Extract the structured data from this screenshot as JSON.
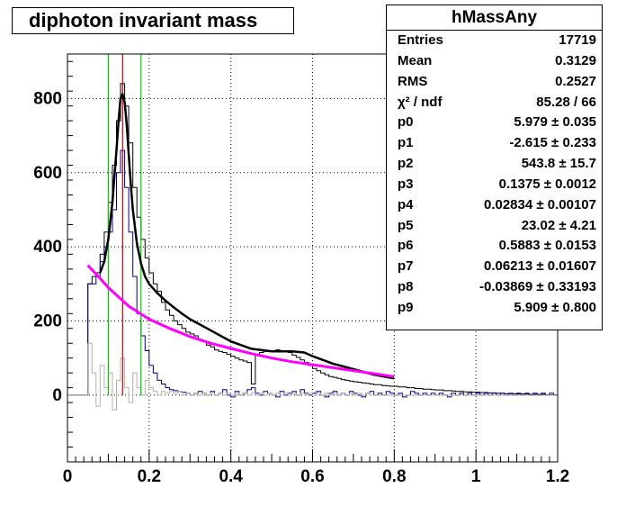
{
  "title": "diphoton invariant mass",
  "stats": {
    "name": "hMassAny",
    "rows": [
      {
        "label": "Entries",
        "value": "17719"
      },
      {
        "label": "Mean",
        "value": "0.3129"
      },
      {
        "label": "RMS",
        "value": "0.2527"
      },
      {
        "label": "χ² / ndf",
        "value": "85.28 / 66"
      },
      {
        "label": "p0",
        "value": "5.979 ± 0.035"
      },
      {
        "label": "p1",
        "value": "-2.615 ± 0.233"
      },
      {
        "label": "p2",
        "value": "543.8 ± 15.7"
      },
      {
        "label": "p3",
        "value": "0.1375 ± 0.0012"
      },
      {
        "label": "p4",
        "value": "0.02834 ± 0.00107"
      },
      {
        "label": "p5",
        "value": "23.02 ± 4.21"
      },
      {
        "label": "p6",
        "value": "0.5883 ± 0.0153"
      },
      {
        "label": "p7",
        "value": "0.06213 ± 0.01607"
      },
      {
        "label": "p8",
        "value": "-0.03869 ± 0.33193"
      },
      {
        "label": "p9",
        "value": "5.909 ± 0.800"
      }
    ]
  },
  "chart_data": {
    "type": "line",
    "xlim": [
      0,
      1.2
    ],
    "ylim": [
      -180,
      920
    ],
    "xticks": [
      "0",
      "0.2",
      "0.4",
      "0.6",
      "0.8",
      "1",
      "1.2"
    ],
    "xtick_values": [
      0,
      0.2,
      0.4,
      0.6,
      0.8,
      1.0,
      1.2
    ],
    "yticks": [
      "0",
      "200",
      "400",
      "600",
      "800"
    ],
    "ytick_values": [
      0,
      200,
      400,
      600,
      800
    ],
    "grid": true,
    "bin_width": 0.005,
    "series": [
      {
        "role": "histogram",
        "color": "#000000",
        "x_start": 0.0,
        "values": [
          0,
          0,
          0,
          0,
          0,
          0,
          0,
          0,
          0,
          0,
          300,
          300,
          320,
          320,
          330,
          330,
          380,
          380,
          440,
          440,
          520,
          520,
          620,
          620,
          740,
          740,
          840,
          840,
          780,
          780,
          680,
          680,
          560,
          560,
          480,
          480,
          420,
          420,
          370,
          370,
          330,
          330,
          300,
          300,
          280,
          280,
          250,
          250,
          230,
          230,
          215,
          215,
          200,
          200,
          190,
          190,
          180,
          180,
          170,
          170,
          165,
          165,
          160,
          160,
          150,
          150,
          145,
          145,
          135,
          135,
          130,
          130,
          122,
          122,
          118,
          118,
          115,
          115,
          110,
          110,
          105,
          105,
          100,
          100,
          95,
          95,
          92,
          92,
          88,
          88,
          30,
          30,
          110,
          110,
          115,
          115,
          118,
          118,
          120,
          120,
          118,
          118,
          122,
          122,
          120,
          120,
          118,
          118,
          115,
          115,
          108,
          108,
          102,
          102,
          95,
          95,
          88,
          88,
          80,
          80,
          72,
          72,
          66,
          66,
          60,
          60,
          55,
          55,
          50,
          50,
          48,
          48,
          45,
          45,
          42,
          42,
          40,
          40,
          38,
          38,
          36,
          36,
          35,
          35,
          33,
          33,
          32,
          32,
          30,
          30,
          28,
          28,
          28,
          28,
          26,
          26,
          25,
          25,
          24,
          24,
          24,
          24,
          22,
          22,
          22,
          22,
          20,
          20,
          20,
          20,
          18,
          18,
          18,
          18,
          16,
          16,
          16,
          16,
          15,
          15,
          14,
          14,
          14,
          14,
          12,
          12,
          12,
          12,
          11,
          11,
          10,
          10,
          10,
          10,
          9,
          9,
          9,
          9,
          8,
          8,
          8,
          8,
          7,
          7,
          7,
          7,
          6,
          6,
          6,
          6,
          5,
          5,
          5,
          5,
          4,
          4,
          4,
          4,
          4,
          4,
          3,
          3,
          3,
          3,
          3,
          3,
          2,
          2,
          2,
          2,
          2,
          2,
          2,
          2,
          1,
          1,
          1,
          1,
          1,
          1
        ]
      },
      {
        "role": "histogram",
        "color": "#00008b",
        "x_start": 0.0,
        "values": [
          0,
          0,
          0,
          0,
          0,
          0,
          0,
          0,
          0,
          0,
          300,
          300,
          300,
          300,
          320,
          320,
          360,
          360,
          400,
          400,
          440,
          440,
          500,
          500,
          600,
          600,
          660,
          660,
          560,
          560,
          440,
          440,
          320,
          320,
          220,
          220,
          160,
          160,
          120,
          120,
          80,
          80,
          60,
          60,
          40,
          40,
          30,
          30,
          20,
          20,
          15,
          15,
          12,
          12,
          10,
          10,
          8,
          8,
          5,
          5,
          0,
          0,
          5,
          5,
          10,
          10,
          5,
          5,
          0,
          0,
          10,
          10,
          0,
          0,
          5,
          5,
          15,
          15,
          0,
          0,
          -5,
          -5,
          10,
          10,
          0,
          0,
          5,
          5,
          15,
          15,
          20,
          20,
          5,
          5,
          0,
          0,
          10,
          10,
          5,
          5,
          0,
          0,
          -5,
          -5,
          10,
          10,
          0,
          0,
          5,
          5,
          10,
          10,
          0,
          0,
          15,
          15,
          5,
          5,
          0,
          0,
          5,
          5,
          10,
          10,
          0,
          0,
          -5,
          -5,
          5,
          5,
          10,
          10,
          0,
          0,
          5,
          5,
          0,
          0,
          10,
          10,
          5,
          5,
          0,
          0,
          -5,
          -5,
          5,
          5,
          10,
          10,
          0,
          0,
          5,
          5,
          0,
          0,
          10,
          10,
          5,
          5,
          0,
          0,
          5,
          5,
          -5,
          -5,
          0,
          0,
          10,
          10,
          5,
          5,
          0,
          0,
          5,
          5,
          0,
          0,
          5,
          5,
          0,
          0,
          5,
          5,
          0,
          0,
          -5,
          -5,
          5,
          5,
          0,
          0,
          5,
          5,
          0,
          0,
          5,
          5,
          0,
          0,
          5,
          5,
          0,
          0,
          5,
          5,
          0,
          0,
          5,
          5,
          0,
          0,
          5,
          5,
          0,
          0,
          5,
          5,
          0,
          0,
          5,
          5,
          0,
          0,
          5,
          5,
          0,
          0,
          5,
          5,
          0,
          0,
          5,
          5,
          0,
          0,
          5,
          5,
          0,
          0
        ]
      },
      {
        "role": "histogram",
        "color": "#b8b0a8",
        "x_start": 0.0,
        "values": [
          0,
          0,
          0,
          0,
          0,
          0,
          0,
          0,
          0,
          0,
          140,
          140,
          60,
          60,
          -30,
          -30,
          80,
          80,
          20,
          20,
          60,
          60,
          -40,
          -40,
          40,
          40,
          100,
          100,
          20,
          20,
          -20,
          -20,
          60,
          60,
          20,
          20,
          0,
          0,
          40,
          40,
          20,
          20,
          10,
          10,
          0,
          0,
          10,
          10,
          5,
          5,
          10,
          10,
          5,
          5,
          10,
          10,
          0,
          0,
          5,
          5,
          0,
          0,
          5,
          5,
          0,
          0,
          5,
          5,
          0,
          0,
          5,
          5,
          0,
          0,
          5,
          5,
          0,
          0,
          5,
          5,
          0,
          0,
          5,
          5,
          0,
          0,
          5,
          5,
          0,
          0,
          5,
          5,
          0,
          0,
          5,
          5,
          0,
          0,
          5,
          5,
          0,
          0,
          5,
          5,
          0,
          0,
          5,
          5,
          0,
          0,
          5,
          5,
          0,
          0,
          5,
          5,
          0,
          0,
          5,
          5,
          0,
          0,
          5,
          5,
          0,
          0,
          5,
          5,
          0,
          0,
          5,
          5,
          0,
          0,
          5,
          5,
          0,
          0,
          5,
          5,
          0,
          0,
          5,
          5,
          0,
          0,
          5,
          5,
          0,
          0,
          0,
          0,
          0,
          0,
          0,
          0,
          0,
          0,
          0,
          0,
          0,
          0,
          0,
          0,
          0,
          0,
          0,
          0,
          0,
          0,
          0,
          0,
          0,
          0,
          0,
          0,
          0,
          0,
          0,
          0,
          0,
          0,
          0,
          0,
          0,
          0,
          0,
          0,
          0,
          0,
          0,
          0,
          0,
          0,
          0,
          0,
          0,
          0,
          0,
          0,
          0,
          0,
          0,
          0,
          0,
          0,
          0,
          0,
          0,
          0,
          0,
          0,
          0,
          0,
          0,
          0,
          0,
          0,
          0,
          0,
          0,
          0,
          0,
          0,
          0,
          0,
          0,
          0,
          0,
          0,
          0,
          0,
          0,
          0,
          0,
          0,
          0,
          0,
          0,
          0
        ]
      },
      {
        "role": "fit_total",
        "color": "#000000",
        "x": [
          0.08,
          0.09,
          0.1,
          0.11,
          0.115,
          0.12,
          0.125,
          0.13,
          0.135,
          0.14,
          0.145,
          0.15,
          0.155,
          0.16,
          0.17,
          0.18,
          0.19,
          0.2,
          0.22,
          0.24,
          0.26,
          0.28,
          0.3,
          0.35,
          0.4,
          0.45,
          0.5,
          0.55,
          0.58,
          0.6,
          0.65,
          0.7,
          0.75,
          0.8
        ],
        "values": [
          330,
          360,
          420,
          520,
          590,
          660,
          740,
          800,
          812,
          790,
          730,
          650,
          570,
          500,
          410,
          355,
          320,
          300,
          275,
          255,
          237,
          220,
          205,
          175,
          145,
          125,
          118,
          118,
          115,
          105,
          85,
          70,
          55,
          45
        ]
      },
      {
        "role": "fit_background",
        "color": "#ff00ff",
        "x": [
          0.05,
          0.08,
          0.1,
          0.15,
          0.2,
          0.25,
          0.3,
          0.35,
          0.4,
          0.45,
          0.5,
          0.55,
          0.6,
          0.65,
          0.7,
          0.75,
          0.8
        ],
        "values": [
          350,
          315,
          290,
          240,
          205,
          180,
          158,
          140,
          126,
          112,
          100,
          90,
          82,
          74,
          66,
          58,
          50
        ]
      }
    ],
    "vertical_lines": [
      {
        "x": 0.1,
        "color": "#00cc00"
      },
      {
        "x": 0.18,
        "color": "#00cc00"
      },
      {
        "x": 0.135,
        "color": "#cc0000"
      }
    ]
  }
}
